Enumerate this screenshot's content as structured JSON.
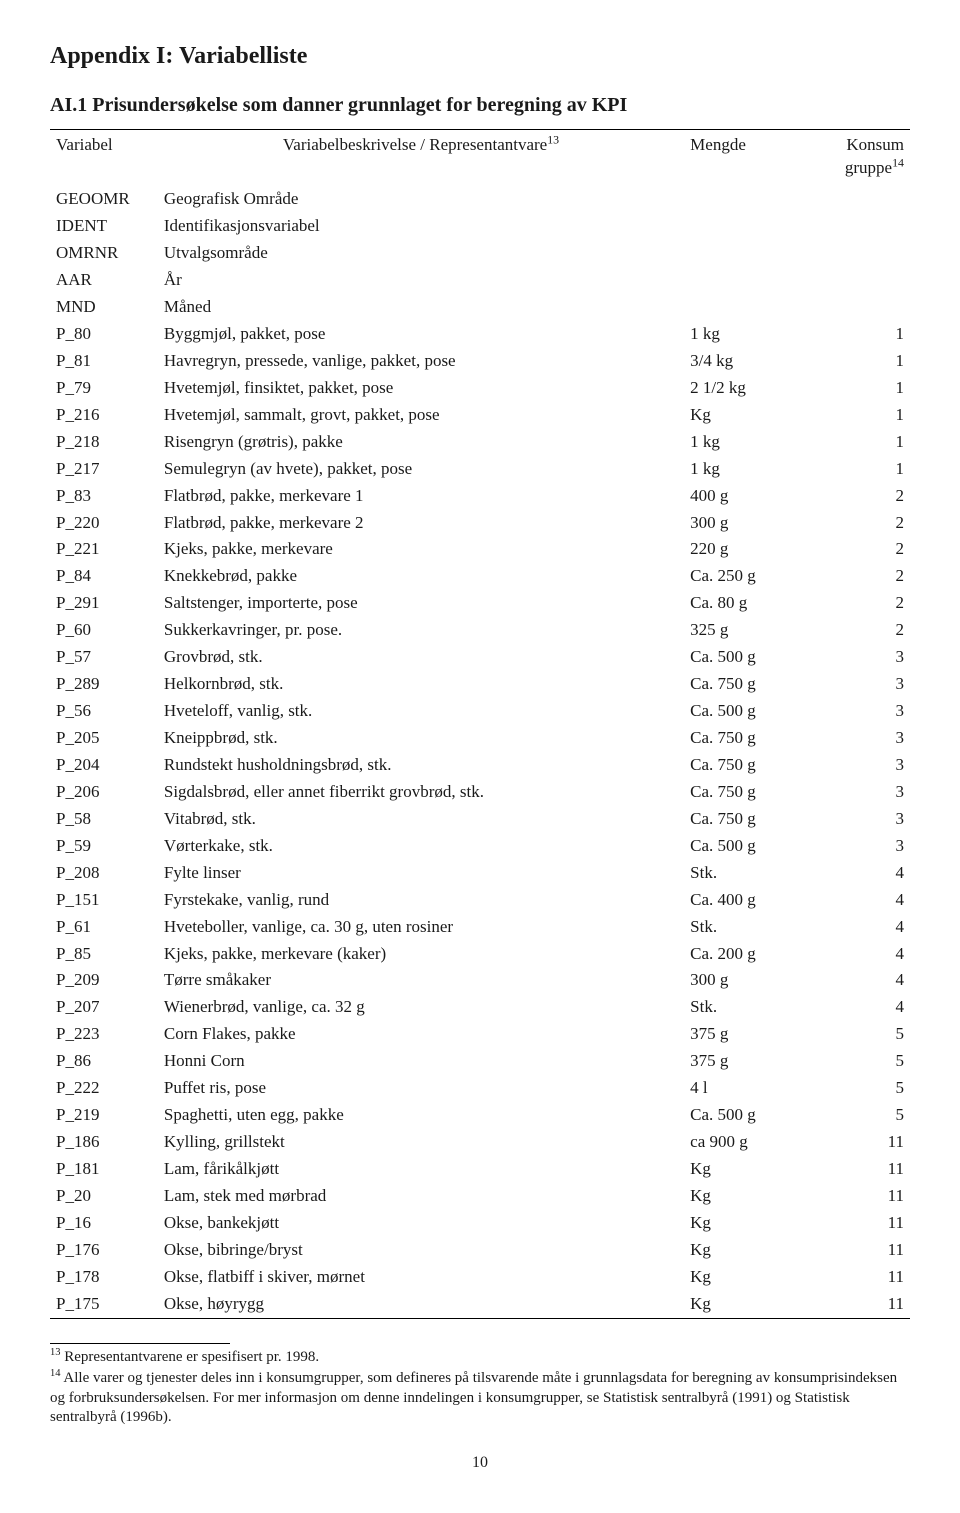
{
  "appendix_title": "Appendix I: Variabelliste",
  "section_title": "AI.1 Prisundersøkelse som danner grunnlaget for beregning av KPI",
  "header": {
    "col1": "Variabel",
    "col2_pre": "Variabelbeskrivelse / Representantvare",
    "col2_sup": "13",
    "col3": "Mengde",
    "col4_pre": "Konsum",
    "col4_line2_pre": "gruppe",
    "col4_sup": "14"
  },
  "meta_rows": [
    {
      "var": "GEOOMR",
      "desc": "Geografisk Område"
    },
    {
      "var": "IDENT",
      "desc": "Identifikasjonsvariabel"
    },
    {
      "var": "OMRNR",
      "desc": "Utvalgsområde"
    },
    {
      "var": "AAR",
      "desc": "År"
    },
    {
      "var": "MND",
      "desc": "Måned"
    }
  ],
  "data_rows": [
    {
      "var": "P_80",
      "desc": "Byggmjøl, pakket, pose",
      "mengde": "1 kg",
      "gruppe": "1"
    },
    {
      "var": "P_81",
      "desc": "Havregryn, pressede, vanlige, pakket, pose",
      "mengde": "3/4 kg",
      "gruppe": "1"
    },
    {
      "var": "P_79",
      "desc": "Hvetemjøl, finsiktet, pakket, pose",
      "mengde": "2 1/2 kg",
      "gruppe": "1"
    },
    {
      "var": "P_216",
      "desc": "Hvetemjøl, sammalt, grovt, pakket, pose",
      "mengde": "Kg",
      "gruppe": "1"
    },
    {
      "var": "P_218",
      "desc": "Risengryn (grøtris), pakke",
      "mengde": "1 kg",
      "gruppe": "1"
    },
    {
      "var": "P_217",
      "desc": "Semulegryn (av hvete), pakket, pose",
      "mengde": "1 kg",
      "gruppe": "1"
    },
    {
      "var": "P_83",
      "desc": "Flatbrød, pakke, merkevare 1",
      "mengde": "400 g",
      "gruppe": "2"
    },
    {
      "var": "P_220",
      "desc": "Flatbrød, pakke, merkevare 2",
      "mengde": "300 g",
      "gruppe": "2"
    },
    {
      "var": "P_221",
      "desc": "Kjeks, pakke, merkevare",
      "mengde": "220 g",
      "gruppe": "2"
    },
    {
      "var": "P_84",
      "desc": "Knekkebrød, pakke",
      "mengde": "Ca. 250 g",
      "gruppe": "2"
    },
    {
      "var": "P_291",
      "desc": "Saltstenger, importerte, pose",
      "mengde": "Ca. 80 g",
      "gruppe": "2"
    },
    {
      "var": "P_60",
      "desc": "Sukkerkavringer, pr. pose.",
      "mengde": "325 g",
      "gruppe": "2"
    },
    {
      "var": "P_57",
      "desc": "Grovbrød, stk.",
      "mengde": "Ca. 500 g",
      "gruppe": "3"
    },
    {
      "var": "P_289",
      "desc": "Helkornbrød, stk.",
      "mengde": "Ca. 750 g",
      "gruppe": "3"
    },
    {
      "var": "P_56",
      "desc": "Hveteloff, vanlig, stk.",
      "mengde": "Ca. 500 g",
      "gruppe": "3"
    },
    {
      "var": "P_205",
      "desc": "Kneippbrød, stk.",
      "mengde": "Ca. 750 g",
      "gruppe": "3"
    },
    {
      "var": "P_204",
      "desc": "Rundstekt husholdningsbrød, stk.",
      "mengde": "Ca. 750 g",
      "gruppe": "3"
    },
    {
      "var": "P_206",
      "desc": "Sigdalsbrød, eller annet fiberrikt grovbrød, stk.",
      "mengde": "Ca. 750 g",
      "gruppe": "3"
    },
    {
      "var": "P_58",
      "desc": "Vitabrød, stk.",
      "mengde": "Ca. 750 g",
      "gruppe": "3"
    },
    {
      "var": "P_59",
      "desc": "Vørterkake, stk.",
      "mengde": "Ca. 500 g",
      "gruppe": "3"
    },
    {
      "var": "P_208",
      "desc": "Fylte linser",
      "mengde": "Stk.",
      "gruppe": "4"
    },
    {
      "var": "P_151",
      "desc": "Fyrstekake, vanlig, rund",
      "mengde": "Ca. 400 g",
      "gruppe": "4"
    },
    {
      "var": "P_61",
      "desc": "Hveteboller, vanlige, ca. 30 g, uten rosiner",
      "mengde": "Stk.",
      "gruppe": "4"
    },
    {
      "var": "P_85",
      "desc": "Kjeks,  pakke, merkevare (kaker)",
      "mengde": "Ca. 200 g",
      "gruppe": "4"
    },
    {
      "var": "P_209",
      "desc": "Tørre småkaker",
      "mengde": "300 g",
      "gruppe": "4"
    },
    {
      "var": "P_207",
      "desc": "Wienerbrød, vanlige, ca. 32 g",
      "mengde": "Stk.",
      "gruppe": "4"
    },
    {
      "var": "P_223",
      "desc": "Corn Flakes, pakke",
      "mengde": "375 g",
      "gruppe": "5"
    },
    {
      "var": "P_86",
      "desc": "Honni Corn",
      "mengde": "375 g",
      "gruppe": "5"
    },
    {
      "var": "P_222",
      "desc": "Puffet ris, pose",
      "mengde": "4 l",
      "gruppe": "5"
    },
    {
      "var": "P_219",
      "desc": "Spaghetti, uten egg, pakke",
      "mengde": "Ca. 500 g",
      "gruppe": "5"
    },
    {
      "var": "P_186",
      "desc": "Kylling, grillstekt",
      "mengde": "ca 900 g",
      "gruppe": "11"
    },
    {
      "var": "P_181",
      "desc": "Lam, fårikålkjøtt",
      "mengde": "Kg",
      "gruppe": "11"
    },
    {
      "var": "P_20",
      "desc": "Lam, stek med mørbrad",
      "mengde": "Kg",
      "gruppe": "11"
    },
    {
      "var": "P_16",
      "desc": "Okse, bankekjøtt",
      "mengde": "Kg",
      "gruppe": "11"
    },
    {
      "var": "P_176",
      "desc": "Okse, bibringe/bryst",
      "mengde": "Kg",
      "gruppe": "11"
    },
    {
      "var": "P_178",
      "desc": "Okse, flatbiff i skiver, mørnet",
      "mengde": "Kg",
      "gruppe": "11"
    },
    {
      "var": "P_175",
      "desc": "Okse, høyrygg",
      "mengde": "Kg",
      "gruppe": "11"
    }
  ],
  "footnotes": {
    "f13_sup": "13",
    "f13_text": " Representantvarene er spesifisert pr. 1998.",
    "f14_sup": "14",
    "f14_text": "  Alle varer og tjenester deles inn i konsumgrupper, som defineres på tilsvarende måte i grunnlagsdata for beregning av konsumprisindeksen og forbruksundersøkelsen. For mer informasjon om denne inndelingen i konsumgrupper, se Statistisk sentralbyrå (1991) og Statistisk sentralbyrå (1996b)."
  },
  "page_number": "10"
}
